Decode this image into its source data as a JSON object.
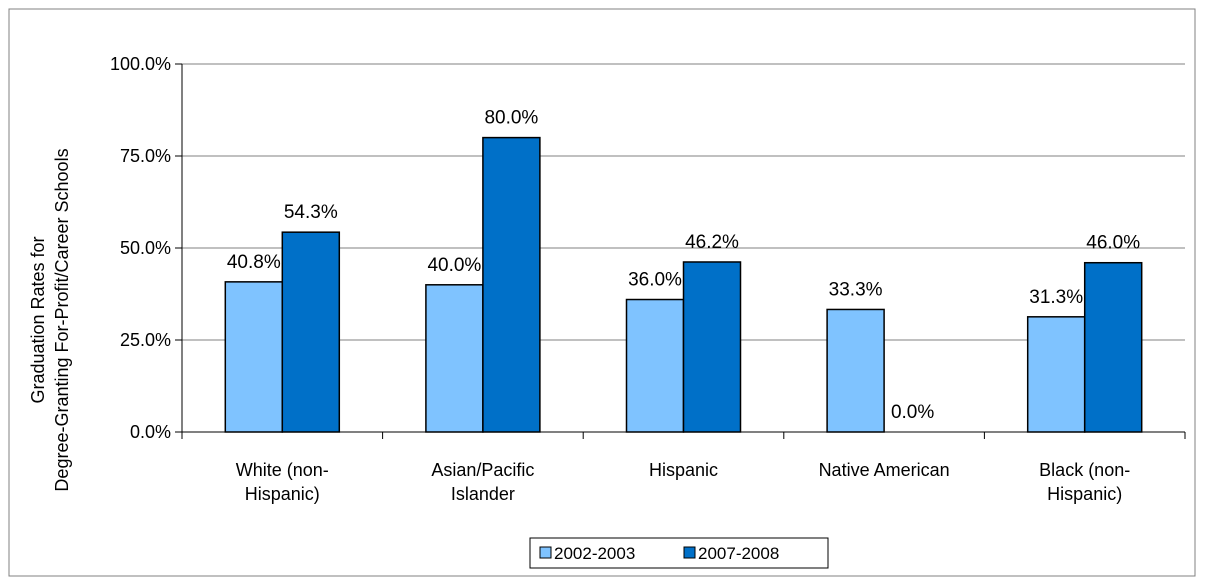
{
  "chart_data": {
    "type": "bar",
    "title": "",
    "xlabel": "",
    "ylabel_lines": [
      "Graduation Rates for",
      "Degree-Granting For-Profit/Career Schools"
    ],
    "categories": [
      [
        "White (non-",
        "Hispanic)"
      ],
      [
        "Asian/Pacific",
        "Islander"
      ],
      [
        "Hispanic"
      ],
      [
        "Native American"
      ],
      [
        "Black (non-",
        "Hispanic)"
      ]
    ],
    "ylim": [
      0,
      100
    ],
    "yticks": [
      0,
      25,
      50,
      75,
      100
    ],
    "ytick_labels": [
      "0.0%",
      "25.0%",
      "50.0%",
      "75.0%",
      "100.0%"
    ],
    "grid": true,
    "legend_position": "bottom",
    "series": [
      {
        "name": "2002-2003",
        "color": "#7fc3ff",
        "values": [
          40.8,
          40.0,
          36.0,
          33.3,
          31.3
        ],
        "labels": [
          "40.8%",
          "40.0%",
          "36.0%",
          "33.3%",
          "31.3%"
        ]
      },
      {
        "name": "2007-2008",
        "color": "#0070c8",
        "values": [
          54.3,
          80.0,
          46.2,
          0.0,
          46.0
        ],
        "labels": [
          "54.3%",
          "80.0%",
          "46.2%",
          "0.0%",
          "46.0%"
        ]
      }
    ]
  }
}
